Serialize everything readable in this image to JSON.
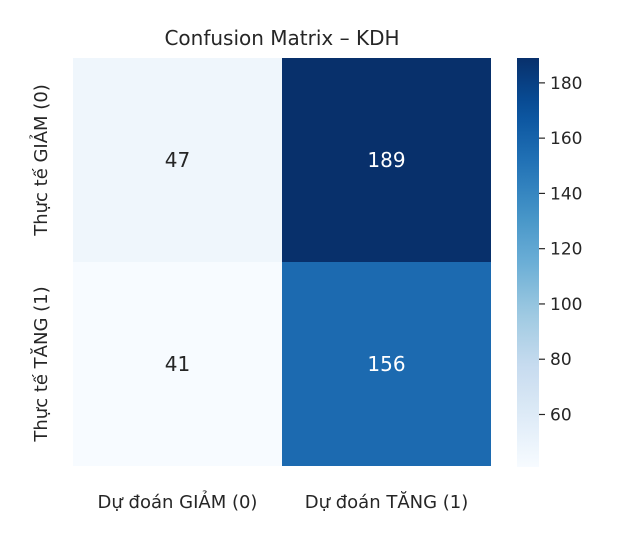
{
  "chart_data": {
    "type": "heatmap",
    "title": "Confusion Matrix – KDH",
    "x_categories": [
      "Dự đoán GIẢM (0)",
      "Dự đoán TĂNG (1)"
    ],
    "y_categories": [
      "Thực tế GIẢM (0)",
      "Thực tế TĂNG (1)"
    ],
    "values": [
      [
        47,
        189
      ],
      [
        41,
        156
      ]
    ],
    "colormap": "Blues",
    "colorbar": {
      "min": 41,
      "max": 189,
      "ticks": [
        60,
        80,
        100,
        120,
        140,
        160,
        180
      ]
    }
  }
}
